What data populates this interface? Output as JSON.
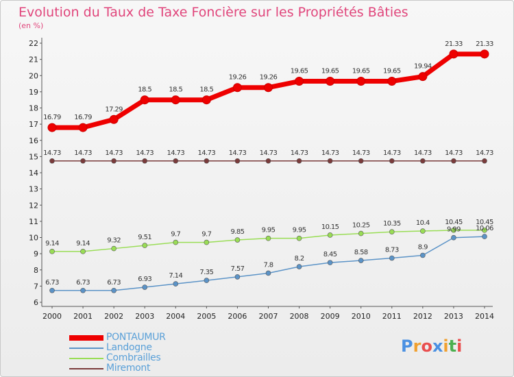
{
  "title": "Evolution du Taux de Taxe Foncière sur les Propriétés Bâties",
  "subtitle": "(en %)",
  "logo": {
    "letters": [
      "P",
      "r",
      "o",
      "x",
      "i",
      "t",
      "i"
    ],
    "colors": [
      "#4a90e2",
      "#f0a030",
      "#e94e4e",
      "#4a90e2",
      "#f0a030",
      "#4caf50",
      "#e94e4e"
    ]
  },
  "chart_data": {
    "type": "line",
    "title": "Evolution du Taux de Taxe Foncière sur les Propriétés Bâties",
    "ylabel": "(en %)",
    "xlabel": "",
    "x": [
      "2000",
      "2001",
      "2002",
      "2003",
      "2004",
      "2005",
      "2006",
      "2007",
      "2008",
      "2009",
      "2010",
      "2011",
      "2012",
      "2013",
      "2014"
    ],
    "ylim": [
      6,
      22
    ],
    "yticks": [
      6,
      7,
      8,
      9,
      10,
      11,
      12,
      13,
      14,
      15,
      16,
      17,
      18,
      19,
      20,
      21,
      22
    ],
    "grid": false,
    "legend_position": "bottom-left",
    "series": [
      {
        "name": "PONTAUMUR",
        "color": "#ee0000",
        "values": [
          16.79,
          16.79,
          17.29,
          18.5,
          18.5,
          18.5,
          19.26,
          19.26,
          19.65,
          19.65,
          19.65,
          19.65,
          19.94,
          21.33,
          21.33
        ],
        "labels": [
          "16.79",
          "16.79",
          "17.29",
          "18.5",
          "18.5",
          "18.5",
          "19.26",
          "19.26",
          "19.65",
          "19.65",
          "19.65",
          "19.65",
          "19.94",
          "21.33",
          "21.33"
        ]
      },
      {
        "name": "Landogne",
        "color": "#5b93c7",
        "values": [
          6.73,
          6.73,
          6.73,
          6.93,
          7.14,
          7.35,
          7.57,
          7.8,
          8.2,
          8.45,
          8.58,
          8.73,
          8.9,
          9.99,
          10.06
        ],
        "labels": [
          "6.73",
          "6.73",
          "6.73",
          "6.93",
          "7.14",
          "7.35",
          "7.57",
          "7.8",
          "8.2",
          "8.45",
          "8.58",
          "8.73",
          "8.9",
          "9.99",
          "10.06"
        ]
      },
      {
        "name": "Combrailles",
        "color": "#99dd55",
        "values": [
          9.14,
          9.14,
          9.32,
          9.51,
          9.7,
          9.7,
          9.85,
          9.95,
          9.95,
          10.15,
          10.25,
          10.35,
          10.4,
          10.45,
          10.45
        ],
        "labels": [
          "9.14",
          "9.14",
          "9.32",
          "9.51",
          "9.7",
          "9.7",
          "9.85",
          "9.95",
          "9.95",
          "10.15",
          "10.25",
          "10.35",
          "10.4",
          "10.45",
          "10.45"
        ]
      },
      {
        "name": "Miremont",
        "color": "#7a3b3b",
        "values": [
          14.73,
          14.73,
          14.73,
          14.73,
          14.73,
          14.73,
          14.73,
          14.73,
          14.73,
          14.73,
          14.73,
          14.73,
          14.73,
          14.73,
          14.73
        ],
        "labels": [
          "14.73",
          "14.73",
          "14.73",
          "14.73",
          "14.73",
          "14.73",
          "14.73",
          "14.73",
          "14.73",
          "14.73",
          "14.73",
          "14.73",
          "14.73",
          "14.73",
          "14.73"
        ]
      }
    ]
  }
}
